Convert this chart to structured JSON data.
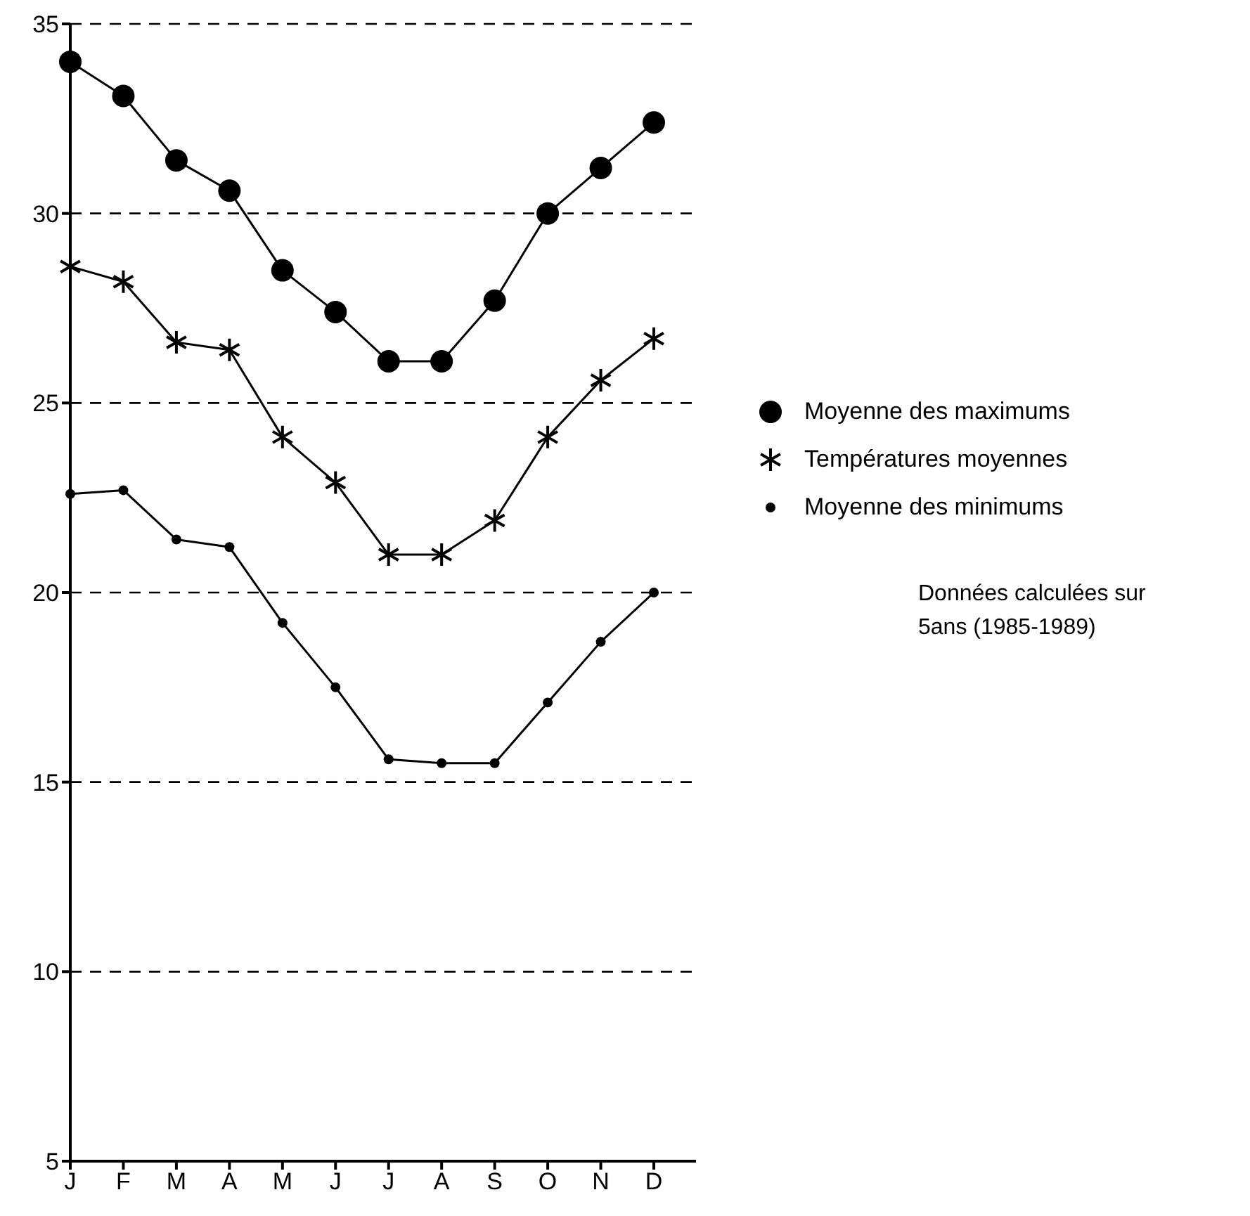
{
  "chart_data": {
    "type": "line",
    "categories": [
      "J",
      "F",
      "M",
      "A",
      "M",
      "J",
      "J",
      "A",
      "S",
      "O",
      "N",
      "D"
    ],
    "series": [
      {
        "name": "Moyenne des maximums",
        "color": "#000000",
        "marker": "circle",
        "values": [
          34.0,
          33.1,
          31.4,
          30.6,
          28.5,
          27.4,
          26.1,
          26.1,
          27.7,
          30.0,
          31.2,
          32.4
        ]
      },
      {
        "name": "Températures moyennes",
        "color": "#000000",
        "marker": "cross",
        "values": [
          28.6,
          28.2,
          26.6,
          26.4,
          24.1,
          22.9,
          21.0,
          21.0,
          21.9,
          24.1,
          25.6,
          26.7
        ]
      },
      {
        "name": "Moyenne des minimums",
        "color": "#000000",
        "marker": "circle",
        "values": [
          22.6,
          22.7,
          21.4,
          21.2,
          19.2,
          17.5,
          15.6,
          15.5,
          15.5,
          17.1,
          18.7,
          20.0
        ]
      }
    ],
    "ylim": [
      5,
      35
    ],
    "yticks": [
      5,
      10,
      15,
      20,
      25,
      30,
      35
    ],
    "grid": "y",
    "legend": "right",
    "annotations": [
      "Données calculées sur 5ans (1985-1989)"
    ]
  }
}
